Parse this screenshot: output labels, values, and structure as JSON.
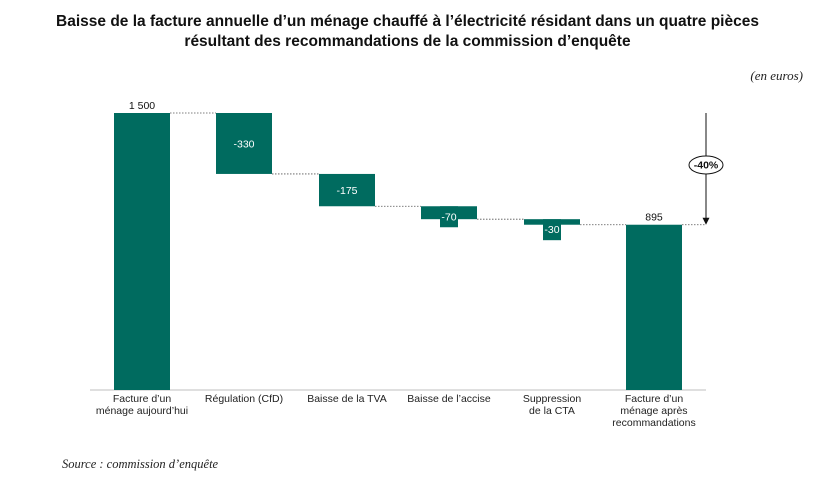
{
  "title_line1": "Baisse de la facture annuelle d’un ménage chauffé à l’électricité résidant dans un quatre pièces",
  "title_line2": "résultant des recommandations de la commission d’enquête",
  "unit_label": "(en euros)",
  "source": "Source : commission d’enquête",
  "colors": {
    "bar": "#006b5f",
    "axis": "#bfbfbf",
    "connector": "#555555"
  },
  "chart_data": {
    "type": "waterfall",
    "categories": [
      [
        "Facture d’un",
        "ménage aujourd’hui"
      ],
      [
        "Régulation (CfD)"
      ],
      [
        "Baisse de la TVA"
      ],
      [
        "Baisse de l’accise"
      ],
      [
        "Suppression",
        "de la CTA"
      ],
      [
        "Facture d’un",
        "ménage après",
        "recommandations"
      ]
    ],
    "values": [
      1500,
      -330,
      -175,
      -70,
      -30,
      895
    ],
    "kinds": [
      "total",
      "delta",
      "delta",
      "delta",
      "delta",
      "total"
    ],
    "labels": [
      "1 500",
      "-330",
      "-175",
      "-70",
      "-30",
      "895"
    ],
    "change_label": "-40%",
    "ylim": [
      0,
      1500
    ]
  }
}
